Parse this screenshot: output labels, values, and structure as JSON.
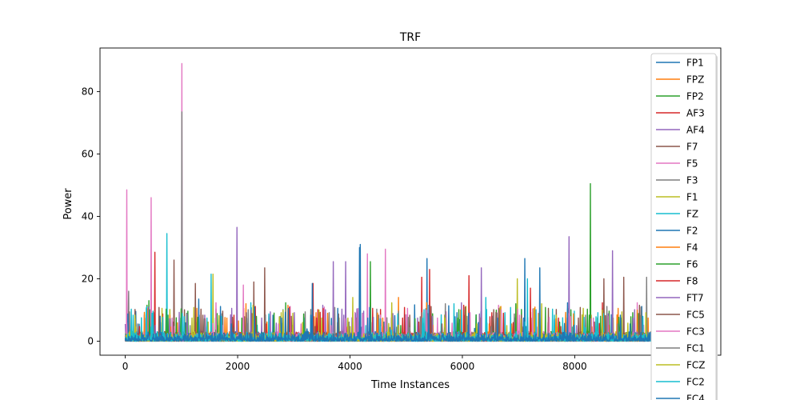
{
  "chart_data": {
    "type": "line",
    "title": "TRF",
    "xlabel": "Time Instances",
    "ylabel": "Power",
    "xlim": [
      -450,
      10600
    ],
    "ylim": [
      -4.5,
      94
    ],
    "xticks": [
      0,
      2000,
      4000,
      6000,
      8000
    ],
    "yticks": [
      0,
      20,
      40,
      60,
      80
    ],
    "grid": false,
    "legend_position": "upper right",
    "palette": [
      "#1f77b4",
      "#ff7f0e",
      "#2ca02c",
      "#d62728",
      "#9467bd",
      "#8c564b",
      "#e377c2",
      "#7f7f7f",
      "#bcbd22",
      "#17becf"
    ],
    "series": [
      {
        "name": "FP1",
        "peaks": [
          [
            9940,
            6
          ],
          [
            620,
            8
          ],
          [
            3000,
            5
          ]
        ]
      },
      {
        "name": "FPZ",
        "peaks": [
          [
            4860,
            14
          ],
          [
            5970,
            10
          ],
          [
            7930,
            9
          ]
        ]
      },
      {
        "name": "FP2",
        "peaks": [
          [
            8280,
            50.5
          ],
          [
            4360,
            25.5
          ],
          [
            420,
            13
          ]
        ]
      },
      {
        "name": "AF3",
        "peaks": [
          [
            530,
            28.5
          ],
          [
            5420,
            23
          ],
          [
            6120,
            21
          ]
        ]
      },
      {
        "name": "AF4",
        "peaks": [
          [
            1990,
            36.5
          ],
          [
            7900,
            33.5
          ],
          [
            3700,
            25.5
          ]
        ]
      },
      {
        "name": "F7",
        "peaks": [
          [
            870,
            26
          ],
          [
            2480,
            23.5
          ],
          [
            8520,
            20
          ]
        ]
      },
      {
        "name": "F5",
        "peaks": [
          [
            30,
            48.5
          ],
          [
            460,
            46
          ],
          [
            1010,
            89
          ]
        ]
      },
      {
        "name": "F3",
        "peaks": [
          [
            1010,
            73.5
          ],
          [
            9570,
            22
          ],
          [
            60,
            16
          ]
        ]
      },
      {
        "name": "F1",
        "peaks": [
          [
            1560,
            21.5
          ],
          [
            6980,
            20
          ],
          [
            3450,
            10
          ]
        ]
      },
      {
        "name": "FZ",
        "peaks": [
          [
            740,
            34.5
          ],
          [
            1530,
            21.5
          ],
          [
            6420,
            14
          ]
        ]
      },
      {
        "name": "F2",
        "peaks": [
          [
            4180,
            31
          ],
          [
            5370,
            26.5
          ],
          [
            7110,
            26.5
          ]
        ]
      },
      {
        "name": "F4",
        "peaks": [
          [
            2150,
            12
          ],
          [
            6620,
            8
          ],
          [
            4490,
            9
          ]
        ]
      },
      {
        "name": "F6",
        "peaks": [
          [
            6950,
            12
          ],
          [
            2650,
            9
          ],
          [
            8460,
            8
          ]
        ]
      },
      {
        "name": "F8",
        "peaks": [
          [
            5280,
            20.5
          ],
          [
            7210,
            17
          ],
          [
            3340,
            18.5
          ]
        ]
      },
      {
        "name": "FT7",
        "peaks": [
          [
            3920,
            25.5
          ],
          [
            6340,
            23.5
          ],
          [
            8670,
            29
          ]
        ]
      },
      {
        "name": "FC5",
        "peaks": [
          [
            2290,
            19
          ],
          [
            8870,
            20.5
          ],
          [
            1250,
            18.5
          ]
        ]
      },
      {
        "name": "FC3",
        "peaks": [
          [
            4630,
            29.5
          ],
          [
            4310,
            28
          ],
          [
            2100,
            18
          ]
        ]
      },
      {
        "name": "FC1",
        "peaks": [
          [
            5700,
            12
          ],
          [
            9280,
            20.5
          ],
          [
            6620,
            9
          ]
        ]
      },
      {
        "name": "FCZ",
        "peaks": [
          [
            7410,
            12
          ],
          [
            4050,
            14
          ],
          [
            2810,
            10
          ]
        ]
      },
      {
        "name": "FC2",
        "peaks": [
          [
            7160,
            20
          ],
          [
            380,
            11
          ],
          [
            5850,
            12
          ]
        ]
      },
      {
        "name": "FC4",
        "peaks": [
          [
            3330,
            18.5
          ],
          [
            7380,
            23.5
          ],
          [
            4170,
            30
          ]
        ]
      }
    ]
  }
}
